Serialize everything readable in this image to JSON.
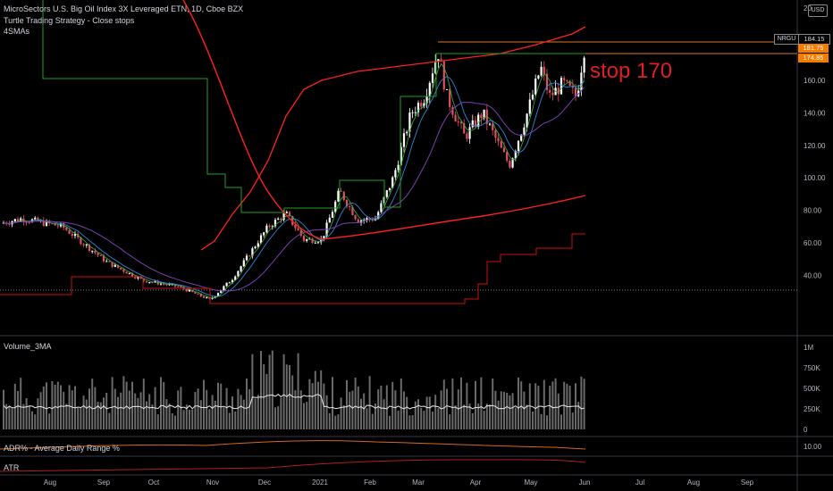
{
  "header": {
    "title": "MicroSectors U.S. Big Oil Index 3X Leveraged ETN, 1D, Cboe BZX",
    "study_turtle": "Turtle Trading Strategy - Close stops",
    "study_sma": "4SMAs",
    "currency": "USD"
  },
  "price_tags": {
    "ticker": "NRGU",
    "last": "184.15",
    "tag2": "181.75",
    "tag3": "174.85"
  },
  "annotation": "stop 170",
  "panes": {
    "volume_title": "Volume_3MA",
    "adr_title": "ADR% - Average Daily Range %",
    "atr_title": "ATR"
  },
  "price_axis": [
    "20",
    "40.00",
    "60.00",
    "80.00",
    "100.00",
    "120.00",
    "140.00",
    "160.00"
  ],
  "volume_axis": [
    "1M",
    "750K",
    "500K",
    "250K",
    "0"
  ],
  "adr_axis": [
    "10.00"
  ],
  "time_axis": [
    "Aug",
    "Sep",
    "Oct",
    "Nov",
    "Dec",
    "2021",
    "Feb",
    "Mar",
    "Apr",
    "May",
    "Jun",
    "Jul",
    "Aug",
    "Sep"
  ],
  "colors": {
    "up": "#ffffff",
    "down": "#e05060",
    "sma_slow": "#ff2020",
    "sma_mid": "#7b3fb0",
    "sma_fast": "#2b86d8",
    "sma_faster": "#40b040",
    "turtle_high": "#1fa01f",
    "turtle_low": "#cc1010",
    "adr": "#d46a1a",
    "atr": "#b02020",
    "tag_orange": "#f57c00"
  }
}
